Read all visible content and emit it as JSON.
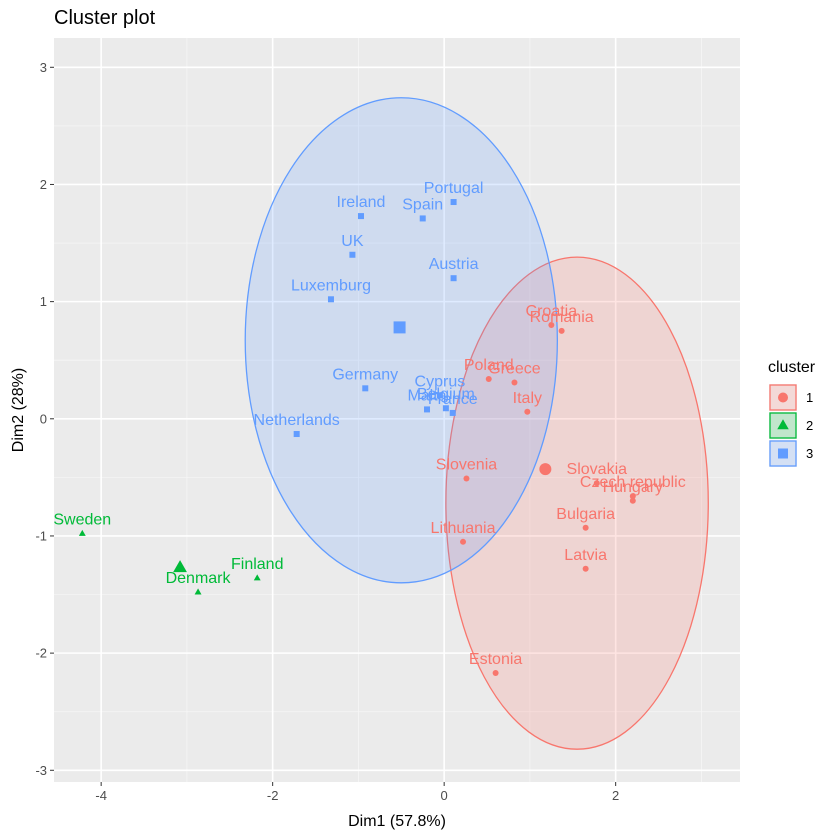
{
  "chart_data": {
    "type": "scatter",
    "title": "Cluster plot",
    "xlabel": "Dim1 (57.8%)",
    "ylabel": "Dim2 (28%)",
    "xlim": [
      -4.55,
      3.45
    ],
    "ylim": [
      -3.1,
      3.25
    ],
    "xticks": [
      -4,
      -2,
      0,
      2
    ],
    "yticks": [
      -3,
      -2,
      -1,
      0,
      1,
      2,
      3
    ],
    "grid": true,
    "legend": {
      "title": "cluster",
      "position": "right"
    },
    "clusters": [
      {
        "name": "1",
        "color": "#F8766D",
        "marker": "circle",
        "centroid": [
          1.18,
          -0.43
        ],
        "ellipse": {
          "cx": 1.55,
          "cy": -0.72,
          "rx": 1.53,
          "ry": 2.1
        },
        "points": [
          {
            "label": "Croatia",
            "x": 1.25,
            "y": 0.8
          },
          {
            "label": "Romania",
            "x": 1.37,
            "y": 0.75
          },
          {
            "label": "Poland",
            "x": 0.52,
            "y": 0.34
          },
          {
            "label": "Greece",
            "x": 0.82,
            "y": 0.31
          },
          {
            "label": "Italy",
            "x": 0.97,
            "y": 0.06
          },
          {
            "label": "Slovenia",
            "x": 0.26,
            "y": -0.51
          },
          {
            "label": "Slovakia",
            "x": 1.78,
            "y": -0.55
          },
          {
            "label": "Czech republic",
            "x": 2.2,
            "y": -0.66
          },
          {
            "label": "Hungary",
            "x": 2.2,
            "y": -0.7
          },
          {
            "label": "Bulgaria",
            "x": 1.65,
            "y": -0.93
          },
          {
            "label": "Lithuania",
            "x": 0.22,
            "y": -1.05
          },
          {
            "label": "Latvia",
            "x": 1.65,
            "y": -1.28
          },
          {
            "label": "Estonia",
            "x": 0.6,
            "y": -2.17
          }
        ]
      },
      {
        "name": "2",
        "color": "#00BA38",
        "marker": "triangle",
        "centroid": [
          -3.08,
          -1.27
        ],
        "points": [
          {
            "label": "Sweden",
            "x": -4.22,
            "y": -0.98
          },
          {
            "label": "Finland",
            "x": -2.18,
            "y": -1.36
          },
          {
            "label": "Denmark",
            "x": -2.87,
            "y": -1.48
          }
        ]
      },
      {
        "name": "3",
        "color": "#619CFF",
        "marker": "square",
        "centroid": [
          -0.52,
          0.78
        ],
        "ellipse": {
          "cx": -0.5,
          "cy": 0.67,
          "rx": 1.82,
          "ry": 2.07
        },
        "points": [
          {
            "label": "Portugal",
            "x": 0.11,
            "y": 1.85
          },
          {
            "label": "Ireland",
            "x": -0.97,
            "y": 1.73
          },
          {
            "label": "Spain",
            "x": -0.25,
            "y": 1.71
          },
          {
            "label": "UK",
            "x": -1.07,
            "y": 1.4
          },
          {
            "label": "Austria",
            "x": 0.11,
            "y": 1.2
          },
          {
            "label": "Luxemburg",
            "x": -1.32,
            "y": 1.02
          },
          {
            "label": "Germany",
            "x": -0.92,
            "y": 0.26
          },
          {
            "label": "Cyprus",
            "x": -0.05,
            "y": 0.2
          },
          {
            "label": "Malta",
            "x": -0.2,
            "y": 0.08
          },
          {
            "label": "Belgium",
            "x": 0.02,
            "y": 0.09
          },
          {
            "label": "France",
            "x": 0.1,
            "y": 0.05
          },
          {
            "label": "Netherlands",
            "x": -1.72,
            "y": -0.13
          }
        ]
      }
    ]
  }
}
